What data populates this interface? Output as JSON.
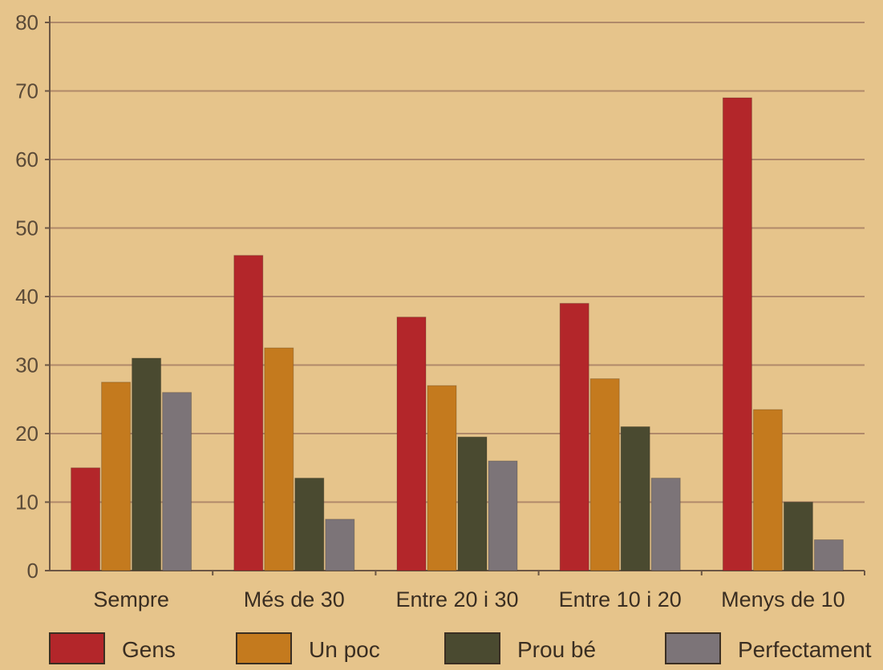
{
  "chart_data": {
    "type": "bar",
    "categories": [
      "Sempre",
      "Més de 30",
      "Entre 20 i 30",
      "Entre 10 i 20",
      "Menys de 10"
    ],
    "series": [
      {
        "name": "Gens",
        "values": [
          15,
          46,
          37,
          39,
          69
        ],
        "color": "#b3262a"
      },
      {
        "name": "Un poc",
        "values": [
          27.5,
          32.5,
          27,
          28,
          23.5
        ],
        "color": "#c47a1e"
      },
      {
        "name": "Prou bé",
        "values": [
          31,
          13.5,
          19.5,
          21,
          10
        ],
        "color": "#4a4a30"
      },
      {
        "name": "Perfectament",
        "values": [
          26,
          7.5,
          16,
          13.5,
          4.5
        ],
        "color": "#7c7478"
      }
    ],
    "yticks": [
      0,
      10,
      20,
      30,
      40,
      50,
      60,
      70,
      80
    ],
    "ylim": [
      0,
      80
    ],
    "title": "",
    "xlabel": "",
    "ylabel": "",
    "grid": true,
    "legend_position": "bottom",
    "colors": {
      "background": "#e6c48b",
      "grid": "#b0896a",
      "axis": "#6b5644"
    }
  }
}
